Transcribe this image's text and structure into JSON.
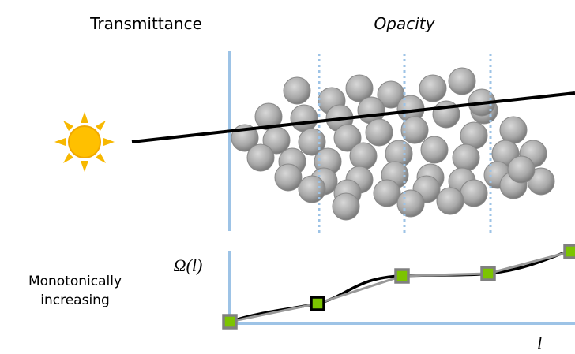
{
  "labels": {
    "left_title": "Transmittance",
    "right_title": "Opacity",
    "curve_note": [
      "Monotonically",
      "increasing"
    ],
    "y_axis": "Ω(l)",
    "x_axis": "l"
  }
}
